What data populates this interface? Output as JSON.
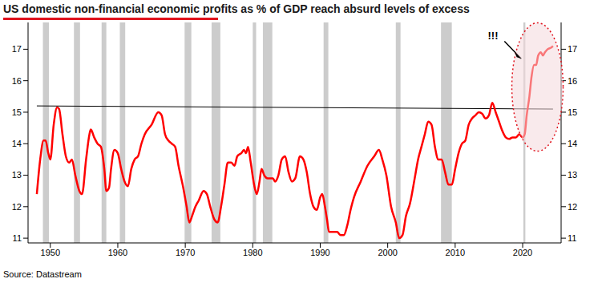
{
  "chart_data": {
    "type": "line",
    "title": "US domestic non-financial economic profits as % of GDP reach absurd levels of excess",
    "source": "Source: Datastream",
    "color": "#ff0000",
    "x": [
      1948,
      1948.5,
      1949,
      1949.3,
      1949.7,
      1950,
      1950.5,
      1951,
      1951.3,
      1951.8,
      1952.3,
      1952.8,
      1953.2,
      1953.7,
      1954.3,
      1954.7,
      1955.3,
      1955.8,
      1956,
      1956.5,
      1957,
      1957.5,
      1958,
      1958.3,
      1958.7,
      1959,
      1959.5,
      1960,
      1960.5,
      1961,
      1961.5,
      1962,
      1962.5,
      1963,
      1963.5,
      1964,
      1965,
      1966,
      1966.5,
      1967,
      1967.5,
      1968,
      1968.5,
      1969,
      1969.7,
      1970.2,
      1970.6,
      1971,
      1971.5,
      1972,
      1972.7,
      1973.2,
      1973.7,
      1974.3,
      1974.8,
      1975.3,
      1975.8,
      1976.3,
      1976.8,
      1977.3,
      1977.7,
      1978.3,
      1978.7,
      1979,
      1979.3,
      1979.7,
      1980.2,
      1980.6,
      1981,
      1981.3,
      1981.7,
      1982.2,
      1982.6,
      1983,
      1983.3,
      1983.8,
      1984.3,
      1984.8,
      1985.3,
      1985.8,
      1986.3,
      1987,
      1987.5,
      1988,
      1988.5,
      1989,
      1989.5,
      1990,
      1990.3,
      1990.7,
      1991,
      1991.3,
      1992,
      1992.5,
      1993,
      1993.5,
      1994,
      1994.5,
      1995,
      1996,
      1997,
      1998,
      1998.7,
      1999.2,
      1999.8,
      2000.5,
      2001.2,
      2001.7,
      2002.2,
      2002.7,
      2003.3,
      2004,
      2004.5,
      2005,
      2005.5,
      2006,
      2006.5,
      2007,
      2007.5,
      2008,
      2008.5,
      2009,
      2009.5,
      2010,
      2010.5,
      2011,
      2011.5,
      2012,
      2012.5,
      2013,
      2013.5,
      2014,
      2014.5,
      2015,
      2015.5,
      2016,
      2016.5,
      2017,
      2017.5,
      2018,
      2018.5,
      2019,
      2019.5,
      2020,
      2020.3,
      2020.6,
      2021,
      2021.3,
      2021.7,
      2022,
      2022.3,
      2022.7,
      2023,
      2023.3,
      2023.7,
      2024.2,
      2024.5
    ],
    "values": [
      12.4,
      13.5,
      14.1,
      14.1,
      13.7,
      13.5,
      14.6,
      15.15,
      15.1,
      14.3,
      13.6,
      13.4,
      13.5,
      13.0,
      12.5,
      12.4,
      13.5,
      14.3,
      14.45,
      14.2,
      14.0,
      13.9,
      13.2,
      12.5,
      12.6,
      13.2,
      13.8,
      13.7,
      13.2,
      12.8,
      12.65,
      13.2,
      13.5,
      13.6,
      14.0,
      14.3,
      14.6,
      15.0,
      14.9,
      14.3,
      14.1,
      14.0,
      13.9,
      13.3,
      12.6,
      12.0,
      11.5,
      11.7,
      12.0,
      12.2,
      12.5,
      12.4,
      12.0,
      11.6,
      11.5,
      12.0,
      12.7,
      13.4,
      13.4,
      13.3,
      13.6,
      13.7,
      13.8,
      13.7,
      13.9,
      13.4,
      12.7,
      12.4,
      12.8,
      13.2,
      13.0,
      12.9,
      12.9,
      12.9,
      12.8,
      13.0,
      13.5,
      13.6,
      13.1,
      12.8,
      12.9,
      13.6,
      13.5,
      13.1,
      12.4,
      12.0,
      11.9,
      12.3,
      12.4,
      12.0,
      11.6,
      11.2,
      11.2,
      11.2,
      11.1,
      11.1,
      11.4,
      11.9,
      12.3,
      12.8,
      13.3,
      13.6,
      13.8,
      13.5,
      13.0,
      12.0,
      11.5,
      11.0,
      11.1,
      11.7,
      12.1,
      12.9,
      13.5,
      13.9,
      14.3,
      14.7,
      14.6,
      13.9,
      13.5,
      13.5,
      13.1,
      12.7,
      12.7,
      13.2,
      13.7,
      14.0,
      14.1,
      14.6,
      14.8,
      14.9,
      15.0,
      14.95,
      14.8,
      14.9,
      15.3,
      15.0,
      14.7,
      14.4,
      14.2,
      14.15,
      14.2,
      14.2,
      14.3,
      14.2,
      14.3,
      14.9,
      15.5,
      16.1,
      16.5,
      16.5,
      16.8,
      16.9,
      16.8,
      16.9,
      17.0,
      17.05,
      17.1
    ],
    "xlim": [
      1946.7,
      2025.7
    ],
    "xticks": [
      1950,
      1960,
      1970,
      1980,
      1990,
      2000,
      2010,
      2020
    ],
    "ylim": [
      10.85,
      17.85
    ],
    "yticks": [
      11,
      12,
      13,
      14,
      15,
      16,
      17
    ],
    "y2lim": [
      10.85,
      17.85
    ],
    "y2ticks": [
      11,
      12,
      13,
      14,
      15,
      16,
      17
    ],
    "recessions": [
      [
        1948.9,
        1949.8
      ],
      [
        1953.5,
        1954.4
      ],
      [
        1957.6,
        1958.3
      ],
      [
        1960.3,
        1961.1
      ],
      [
        1969.9,
        1970.9
      ],
      [
        1973.9,
        1975.2
      ],
      [
        1980.0,
        1980.5
      ],
      [
        1981.5,
        1982.9
      ],
      [
        1990.5,
        1991.2
      ],
      [
        2001.2,
        2001.9
      ],
      [
        2007.9,
        2009.5
      ],
      [
        2020.1,
        2020.4
      ]
    ],
    "reference_line": {
      "x": [
        1948,
        2024.5
      ],
      "y": [
        15.2,
        15.1
      ]
    },
    "annotation": {
      "text": "!!!",
      "x": 2015.6,
      "y": 17.4,
      "arrow_from": [
        2017.3,
        17.25
      ],
      "arrow_to": [
        2019.8,
        16.7
      ]
    },
    "highlight": {
      "x": 2022.2,
      "y": 15.8
    }
  }
}
